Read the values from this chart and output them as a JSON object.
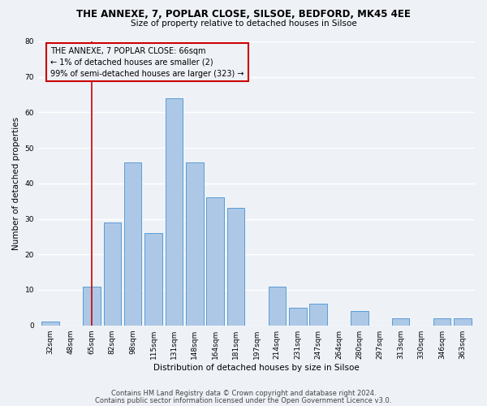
{
  "title": "THE ANNEXE, 7, POPLAR CLOSE, SILSOE, BEDFORD, MK45 4EE",
  "subtitle": "Size of property relative to detached houses in Silsoe",
  "xlabel": "Distribution of detached houses by size in Silsoe",
  "ylabel": "Number of detached properties",
  "categories": [
    "32sqm",
    "48sqm",
    "65sqm",
    "82sqm",
    "98sqm",
    "115sqm",
    "131sqm",
    "148sqm",
    "164sqm",
    "181sqm",
    "197sqm",
    "214sqm",
    "231sqm",
    "247sqm",
    "264sqm",
    "280sqm",
    "297sqm",
    "313sqm",
    "330sqm",
    "346sqm",
    "363sqm"
  ],
  "values": [
    1,
    0,
    11,
    29,
    46,
    26,
    64,
    46,
    36,
    33,
    0,
    11,
    5,
    6,
    0,
    4,
    0,
    2,
    0,
    2,
    2
  ],
  "bar_color": "#adc8e6",
  "bar_edge_color": "#5b9bd5",
  "redline_index": 2,
  "annotation_line1": "THE ANNEXE, 7 POPLAR CLOSE: 66sqm",
  "annotation_line2": "← 1% of detached houses are smaller (2)",
  "annotation_line3": "99% of semi-detached houses are larger (323) →",
  "annotation_box_edge": "#cc0000",
  "redline_color": "#cc0000",
  "footer1": "Contains HM Land Registry data © Crown copyright and database right 2024.",
  "footer2": "Contains public sector information licensed under the Open Government Licence v3.0.",
  "ylim": [
    0,
    80
  ],
  "yticks": [
    0,
    10,
    20,
    30,
    40,
    50,
    60,
    70,
    80
  ],
  "background_color": "#eef2f7",
  "grid_color": "#ffffff",
  "title_fontsize": 8.5,
  "subtitle_fontsize": 7.5,
  "axis_label_fontsize": 7.5,
  "tick_fontsize": 6.5,
  "annotation_fontsize": 7.0,
  "footer_fontsize": 6.0
}
